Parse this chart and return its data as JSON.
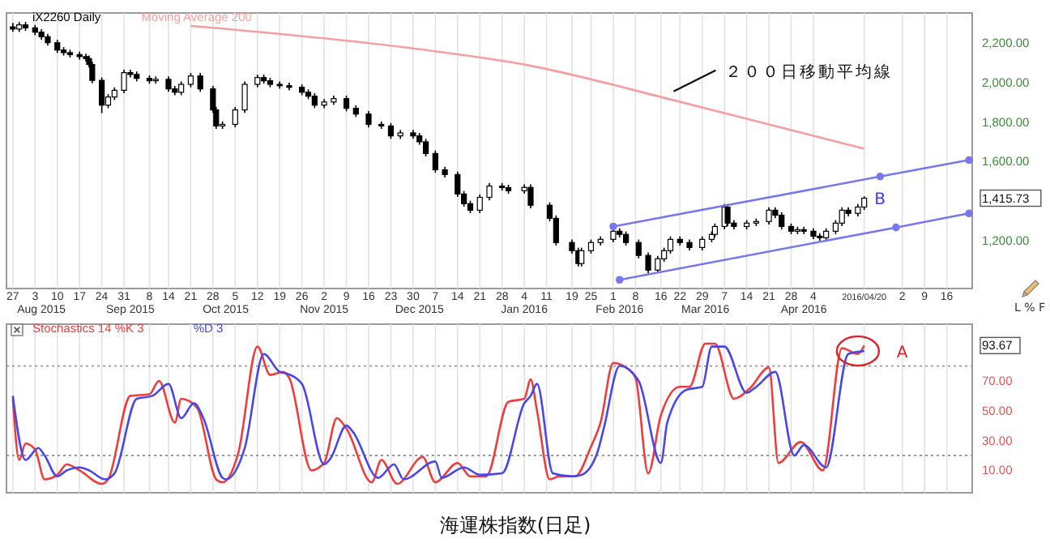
{
  "chart_data": [
    {
      "type": "candlestick",
      "legend": "top left",
      "grid": "x",
      "xlim": [
        "2015-07-25",
        "2016-05-24"
      ],
      "ylim": [
        960,
        2350
      ],
      "xticks": [
        {
          "value": "2015-07-27",
          "label": "27"
        },
        {
          "value": "2015-08-03",
          "label": "3"
        },
        {
          "value": "2015-08-10",
          "label": "10"
        },
        {
          "value": "2015-08-17",
          "label": "17"
        },
        {
          "value": "2015-08-24",
          "label": "24"
        },
        {
          "value": "2015-08-31",
          "label": "31"
        },
        {
          "value": "2015-09-08",
          "label": "8"
        },
        {
          "value": "2015-09-14",
          "label": "14"
        },
        {
          "value": "2015-09-21",
          "label": "21"
        },
        {
          "value": "2015-09-28",
          "label": "28"
        },
        {
          "value": "2015-10-05",
          "label": "5"
        },
        {
          "value": "2015-10-12",
          "label": "12"
        },
        {
          "value": "2015-10-19",
          "label": "19"
        },
        {
          "value": "2015-10-26",
          "label": "26"
        },
        {
          "value": "2015-11-02",
          "label": "2"
        },
        {
          "value": "2015-11-09",
          "label": "9"
        },
        {
          "value": "2015-11-16",
          "label": "16"
        },
        {
          "value": "2015-11-23",
          "label": "23"
        },
        {
          "value": "2015-11-30",
          "label": "30"
        },
        {
          "value": "2015-12-07",
          "label": "7"
        },
        {
          "value": "2015-12-14",
          "label": "14"
        },
        {
          "value": "2015-12-21",
          "label": "21"
        },
        {
          "value": "2015-12-28",
          "label": "28"
        },
        {
          "value": "2016-01-04",
          "label": "4"
        },
        {
          "value": "2016-01-11",
          "label": "11"
        },
        {
          "value": "2016-01-19",
          "label": "19"
        },
        {
          "value": "2016-01-25",
          "label": "25"
        },
        {
          "value": "2016-02-01",
          "label": "1"
        },
        {
          "value": "2016-02-08",
          "label": "8"
        },
        {
          "value": "2016-02-16",
          "label": "16"
        },
        {
          "value": "2016-02-22",
          "label": "22"
        },
        {
          "value": "2016-02-29",
          "label": "29"
        },
        {
          "value": "2016-03-07",
          "label": "7"
        },
        {
          "value": "2016-03-14",
          "label": "14"
        },
        {
          "value": "2016-03-21",
          "label": "21"
        },
        {
          "value": "2016-03-28",
          "label": "28"
        },
        {
          "value": "2016-04-04",
          "label": "4"
        },
        {
          "value": "2016-04-20",
          "label": "2016/04/20"
        },
        {
          "value": "2016-05-02",
          "label": "2"
        },
        {
          "value": "2016-05-09",
          "label": "9"
        },
        {
          "value": "2016-05-16",
          "label": "16"
        }
      ],
      "x2lim": [
        "2015-07-25",
        "2016-05-24"
      ],
      "x2ticks": [
        {
          "value": "2015-08-05",
          "label": "Aug 2015"
        },
        {
          "value": "2015-09-02",
          "label": "Sep 2015"
        },
        {
          "value": "2015-10-02",
          "label": "Oct 2015"
        },
        {
          "value": "2015-11-02",
          "label": "Nov 2015"
        },
        {
          "value": "2015-12-02",
          "label": "Dec 2015"
        },
        {
          "value": "2016-01-04",
          "label": "Jan 2016"
        },
        {
          "value": "2016-02-03",
          "label": "Feb 2016"
        },
        {
          "value": "2016-03-01",
          "label": "Mar 2016"
        },
        {
          "value": "2016-04-01",
          "label": "Apr 2016"
        }
      ],
      "yticks": [
        {
          "value": 1200,
          "label": "1,200.00"
        },
        {
          "value": 1415.73,
          "label": "1,415.73"
        },
        {
          "value": 1600,
          "label": "1,600.00"
        },
        {
          "value": 1800,
          "label": "1,800.00"
        },
        {
          "value": 2000,
          "label": "2,000.00"
        },
        {
          "value": 2200,
          "label": "2,200.00"
        }
      ],
      "series": [
        {
          "name": "iX2260 Daily",
          "color": "#000000",
          "x": [
            "2015-07-27",
            "2015-07-29",
            "2015-07-31",
            "2015-08-03",
            "2015-08-05",
            "2015-08-07",
            "2015-08-10",
            "2015-08-12",
            "2015-08-14",
            "2015-08-17",
            "2015-08-19",
            "2015-08-20",
            "2015-08-21",
            "2015-08-24",
            "2015-08-26",
            "2015-08-28",
            "2015-08-31",
            "2015-09-02",
            "2015-09-04",
            "2015-09-08",
            "2015-09-10",
            "2015-09-14",
            "2015-09-16",
            "2015-09-18",
            "2015-09-21",
            "2015-09-24",
            "2015-09-28",
            "2015-09-29",
            "2015-10-01",
            "2015-10-05",
            "2015-10-08",
            "2015-10-12",
            "2015-10-14",
            "2015-10-16",
            "2015-10-19",
            "2015-10-22",
            "2015-10-26",
            "2015-10-28",
            "2015-10-30",
            "2015-11-02",
            "2015-11-05",
            "2015-11-09",
            "2015-11-12",
            "2015-11-16",
            "2015-11-20",
            "2015-11-23",
            "2015-11-26",
            "2015-11-30",
            "2015-12-02",
            "2015-12-04",
            "2015-12-07",
            "2015-12-10",
            "2015-12-14",
            "2015-12-16",
            "2015-12-18",
            "2015-12-21",
            "2015-12-24",
            "2015-12-28",
            "2015-12-30",
            "2016-01-04",
            "2016-01-06",
            "2016-01-12",
            "2016-01-14",
            "2016-01-19",
            "2016-01-21",
            "2016-01-22",
            "2016-01-25",
            "2016-01-28",
            "2016-02-01",
            "2016-02-03",
            "2016-02-05",
            "2016-02-09",
            "2016-02-12",
            "2016-02-15",
            "2016-02-17",
            "2016-02-19",
            "2016-02-22",
            "2016-02-25",
            "2016-02-29",
            "2016-03-03",
            "2016-03-04",
            "2016-03-07",
            "2016-03-08",
            "2016-03-10",
            "2016-03-14",
            "2016-03-17",
            "2016-03-21",
            "2016-03-23",
            "2016-03-25",
            "2016-03-28",
            "2016-03-30",
            "2016-04-01",
            "2016-04-04",
            "2016-04-06",
            "2016-04-08",
            "2016-04-11",
            "2016-04-13",
            "2016-04-15",
            "2016-04-18",
            "2016-04-20"
          ],
          "ohlc": [
            [
              2280,
              2300,
              2255,
              2269
            ],
            [
              2269,
              2305,
              2254,
              2290
            ],
            [
              2290,
              2305,
              2260,
              2275
            ],
            [
              2275,
              2290,
              2238,
              2253
            ],
            [
              2253,
              2268,
              2215,
              2230
            ],
            [
              2230,
              2245,
              2185,
              2200
            ],
            [
              2200,
              2215,
              2148,
              2163
            ],
            [
              2163,
              2178,
              2135,
              2150
            ],
            [
              2150,
              2165,
              2125,
              2140
            ],
            [
              2140,
              2155,
              2115,
              2130
            ],
            [
              2130,
              2145,
              2105,
              2120
            ],
            [
              2120,
              2135,
              2075,
              2090
            ],
            [
              2090,
              2105,
              1995,
              2010
            ],
            [
              2010,
              2025,
              1845,
              1885
            ],
            [
              1885,
              1941,
              1870,
              1926
            ],
            [
              1926,
              1975,
              1911,
              1960
            ],
            [
              1960,
              2064,
              1945,
              2049
            ],
            [
              2049,
              2064,
              2025,
              2040
            ],
            [
              2040,
              2055,
              2005,
              2020
            ],
            [
              2020,
              2035,
              1993,
              2008
            ],
            [
              2008,
              2030,
              1993,
              2015
            ],
            [
              2015,
              2030,
              1952,
              1967
            ],
            [
              1967,
              1982,
              1935,
              1950
            ],
            [
              1950,
              2005,
              1935,
              1990
            ],
            [
              1990,
              2047,
              1975,
              2032
            ],
            [
              2032,
              2047,
              1952,
              1967
            ],
            [
              1967,
              1982,
              1846,
              1861
            ],
            [
              1861,
              1876,
              1765,
              1780
            ],
            [
              1780,
              1803,
              1765,
              1788
            ],
            [
              1788,
              1876,
              1773,
              1861
            ],
            [
              1861,
              2005,
              1846,
              1990
            ],
            [
              1990,
              2039,
              1975,
              2024
            ],
            [
              2024,
              2039,
              1993,
              2008
            ],
            [
              2008,
              2023,
              1975,
              1990
            ],
            [
              1990,
              2005,
              1968,
              1983
            ],
            [
              1983,
              1998,
              1960,
              1975
            ],
            [
              1975,
              1990,
              1935,
              1950
            ],
            [
              1950,
              1965,
              1915,
              1930
            ],
            [
              1930,
              1945,
              1870,
              1885
            ],
            [
              1885,
              1916,
              1870,
              1901
            ],
            [
              1901,
              1933,
              1886,
              1918
            ],
            [
              1918,
              1933,
              1854,
              1869
            ],
            [
              1869,
              1884,
              1825,
              1840
            ],
            [
              1840,
              1855,
              1773,
              1788
            ],
            [
              1788,
              1803,
              1765,
              1780
            ],
            [
              1780,
              1795,
              1715,
              1730
            ],
            [
              1730,
              1760,
              1715,
              1745
            ],
            [
              1745,
              1760,
              1715,
              1730
            ],
            [
              1730,
              1745,
              1685,
              1700
            ],
            [
              1700,
              1715,
              1626,
              1641
            ],
            [
              1641,
              1656,
              1544,
              1559
            ],
            [
              1559,
              1574,
              1520,
              1535
            ],
            [
              1535,
              1550,
              1422,
              1437
            ],
            [
              1437,
              1452,
              1373,
              1388
            ],
            [
              1388,
              1403,
              1340,
              1355
            ],
            [
              1355,
              1435,
              1340,
              1420
            ],
            [
              1420,
              1492,
              1405,
              1477
            ],
            [
              1477,
              1492,
              1454,
              1469
            ],
            [
              1469,
              1484,
              1438,
              1453
            ],
            [
              1453,
              1485,
              1438,
              1470
            ],
            [
              1470,
              1485,
              1365,
              1380
            ],
            [
              1380,
              1395,
              1299,
              1314
            ],
            [
              1314,
              1329,
              1177,
              1192
            ],
            [
              1192,
              1207,
              1136,
              1151
            ],
            [
              1151,
              1166,
              1071,
              1086
            ],
            [
              1086,
              1166,
              1071,
              1151
            ],
            [
              1151,
              1207,
              1136,
              1192
            ],
            [
              1192,
              1223,
              1177,
              1208
            ],
            [
              1208,
              1264,
              1193,
              1249
            ],
            [
              1249,
              1264,
              1218,
              1233
            ],
            [
              1233,
              1248,
              1177,
              1192
            ],
            [
              1192,
              1207,
              1112,
              1127
            ],
            [
              1127,
              1142,
              1038,
              1053
            ],
            [
              1053,
              1125,
              1038,
              1110
            ],
            [
              1110,
              1166,
              1095,
              1151
            ],
            [
              1151,
              1223,
              1136,
              1208
            ],
            [
              1208,
              1223,
              1177,
              1192
            ],
            [
              1192,
              1207,
              1152,
              1167
            ],
            [
              1167,
              1223,
              1152,
              1208
            ],
            [
              1208,
              1248,
              1193,
              1233
            ],
            [
              1233,
              1288,
              1218,
              1273
            ],
            [
              1273,
              1386,
              1258,
              1371
            ],
            [
              1371,
              1386,
              1275,
              1290
            ],
            [
              1290,
              1305,
              1258,
              1273
            ],
            [
              1273,
              1305,
              1258,
              1290
            ],
            [
              1290,
              1313,
              1275,
              1298
            ],
            [
              1298,
              1370,
              1283,
              1355
            ],
            [
              1355,
              1370,
              1315,
              1330
            ],
            [
              1330,
              1345,
              1258,
              1273
            ],
            [
              1273,
              1288,
              1234,
              1249
            ],
            [
              1249,
              1272,
              1234,
              1257
            ],
            [
              1257,
              1272,
              1234,
              1249
            ],
            [
              1249,
              1264,
              1209,
              1224
            ],
            [
              1224,
              1239,
              1201,
              1216
            ],
            [
              1216,
              1264,
              1201,
              1249
            ],
            [
              1249,
              1305,
              1234,
              1290
            ],
            [
              1290,
              1370,
              1275,
              1355
            ],
            [
              1355,
              1370,
              1324,
              1339
            ],
            [
              1339,
              1386,
              1324,
              1371
            ],
            [
              1371,
              1425,
              1356,
              1415.73
            ]
          ]
        },
        {
          "name": "Moving Average 200",
          "type": "line",
          "color": "#f4a0a0",
          "x": [
            "2015-09-21",
            "2015-11-30",
            "2016-01-04",
            "2016-02-20",
            "2016-03-21",
            "2016-04-20"
          ],
          "values": [
            2285,
            2171,
            2090,
            1910,
            1788,
            1665
          ]
        },
        {
          "type": "line",
          "color": "#7878ee",
          "marker": "circle",
          "x": [
            "2016-02-01",
            "2016-04-25",
            "2016-05-23"
          ],
          "values": [
            1273,
            1525,
            1608
          ]
        },
        {
          "type": "line",
          "color": "#7878ee",
          "marker": "circle",
          "x": [
            "2016-02-03",
            "2016-04-30",
            "2016-05-23"
          ],
          "values": [
            1004,
            1268,
            1339
          ]
        }
      ],
      "annotations": [
        {
          "text": "２００日移動平均線",
          "x": "2016-02-20",
          "y": 1930
        },
        "B",
        "L % F"
      ]
    },
    {
      "type": "line",
      "legend": "top left",
      "grid": "x",
      "tick_labels": "y",
      "xlim": [
        "2015-07-25",
        "2016-05-24"
      ],
      "ylim": [
        -5,
        108
      ],
      "xticks": [
        {
          "value": "2015-07-27",
          "label": null
        },
        {
          "value": "2015-08-03",
          "label": null
        },
        {
          "value": "2015-08-10",
          "label": null
        },
        {
          "value": "2015-08-17",
          "label": null
        },
        {
          "value": "2015-08-24",
          "label": null
        },
        {
          "value": "2015-08-31",
          "label": null
        },
        {
          "value": "2015-09-08",
          "label": null
        },
        {
          "value": "2015-09-14",
          "label": null
        },
        {
          "value": "2015-09-21",
          "label": null
        },
        {
          "value": "2015-09-28",
          "label": null
        },
        {
          "value": "2015-10-05",
          "label": null
        },
        {
          "value": "2015-10-12",
          "label": null
        },
        {
          "value": "2015-10-19",
          "label": null
        },
        {
          "value": "2015-10-26",
          "label": null
        },
        {
          "value": "2015-11-02",
          "label": null
        },
        {
          "value": "2015-11-09",
          "label": null
        },
        {
          "value": "2015-11-16",
          "label": null
        },
        {
          "value": "2015-11-23",
          "label": null
        },
        {
          "value": "2015-11-30",
          "label": null
        },
        {
          "value": "2015-12-07",
          "label": null
        },
        {
          "value": "2015-12-14",
          "label": null
        },
        {
          "value": "2015-12-21",
          "label": null
        },
        {
          "value": "2015-12-28",
          "label": null
        },
        {
          "value": "2016-01-04",
          "label": null
        },
        {
          "value": "2016-01-11",
          "label": null
        },
        {
          "value": "2016-01-19",
          "label": null
        },
        {
          "value": "2016-01-25",
          "label": null
        },
        {
          "value": "2016-02-01",
          "label": null
        },
        {
          "value": "2016-02-08",
          "label": null
        },
        {
          "value": "2016-02-16",
          "label": null
        },
        {
          "value": "2016-02-22",
          "label": null
        },
        {
          "value": "2016-02-29",
          "label": null
        },
        {
          "value": "2016-03-07",
          "label": null
        },
        {
          "value": "2016-03-14",
          "label": null
        },
        {
          "value": "2016-03-21",
          "label": null
        },
        {
          "value": "2016-03-28",
          "label": null
        },
        {
          "value": "2016-04-04",
          "label": null
        },
        {
          "value": "2016-04-20",
          "label": null
        },
        {
          "value": "2016-05-02",
          "label": null
        },
        {
          "value": "2016-05-09",
          "label": null
        },
        {
          "value": "2016-05-16",
          "label": null
        }
      ],
      "yticks": [
        {
          "value": 10,
          "label": "10.00"
        },
        {
          "value": 30,
          "label": "30.00"
        },
        {
          "value": 50,
          "label": "50.00"
        },
        {
          "value": 70,
          "label": "70.00"
        },
        {
          "value": 93.67,
          "label": "93.67"
        }
      ],
      "ref_lines": [
        {
          "axis": "y",
          "value": 80,
          "color": "#999999",
          "line_style": "dotted"
        },
        {
          "axis": "y",
          "value": 20,
          "color": "#999999",
          "line_style": "dotted"
        }
      ],
      "series": [
        {
          "name": "Stochastics 14 %K 3",
          "color": "#f03c3c",
          "x": [
            "2015-07-27",
            "2015-07-29",
            "2015-07-31",
            "2015-08-03",
            "2015-08-06",
            "2015-08-10",
            "2015-08-13",
            "2015-08-17",
            "2015-08-24",
            "2015-08-26",
            "2015-09-02",
            "2015-09-08",
            "2015-09-11",
            "2015-09-16",
            "2015-09-18",
            "2015-09-23",
            "2015-09-29",
            "2015-10-01",
            "2015-10-06",
            "2015-10-12",
            "2015-10-16",
            "2015-10-20",
            "2015-10-22",
            "2015-10-29",
            "2015-11-02",
            "2015-11-06",
            "2015-11-09",
            "2015-11-17",
            "2015-11-20",
            "2015-11-25",
            "2015-12-03",
            "2015-12-07",
            "2015-12-14",
            "2015-12-18",
            "2015-12-23",
            "2015-12-30",
            "2016-01-04",
            "2016-01-06",
            "2016-01-08",
            "2016-01-12",
            "2016-01-15",
            "2016-01-20",
            "2016-01-25",
            "2016-01-28",
            "2016-02-01",
            "2016-02-05",
            "2016-02-08",
            "2016-02-12",
            "2016-02-16",
            "2016-02-22",
            "2016-02-25",
            "2016-03-01",
            "2016-03-04",
            "2016-03-10",
            "2016-03-15",
            "2016-03-21",
            "2016-03-24",
            "2016-03-31",
            "2016-04-07",
            "2016-04-13",
            "2016-04-18",
            "2016-04-20"
          ],
          "values": [
            58,
            17,
            28,
            24,
            4,
            7,
            14,
            10,
            1,
            4,
            60,
            61,
            70,
            42,
            58,
            52,
            4,
            2,
            22,
            93,
            74,
            76,
            72,
            10,
            15,
            45,
            38,
            2,
            17,
            1,
            19,
            2,
            15,
            6,
            6,
            56,
            58,
            71,
            50,
            4,
            6,
            6,
            26,
            42,
            82,
            79,
            72,
            8,
            47,
            66,
            66,
            95,
            95,
            58,
            65,
            79,
            15,
            29,
            10,
            92,
            88,
            93.67
          ]
        },
        {
          "name": "%D 3",
          "color": "#4848e8",
          "x": [
            "2015-07-27",
            "2015-07-31",
            "2015-08-04",
            "2015-08-06",
            "2015-08-10",
            "2015-08-13",
            "2015-08-17",
            "2015-08-20",
            "2015-08-25",
            "2015-08-28",
            "2015-09-04",
            "2015-09-09",
            "2015-09-14",
            "2015-09-18",
            "2015-09-22",
            "2015-09-25",
            "2015-10-01",
            "2015-10-02",
            "2015-10-08",
            "2015-10-14",
            "2015-10-19",
            "2015-10-21",
            "2015-10-26",
            "2015-11-02",
            "2015-11-04",
            "2015-11-09",
            "2015-11-11",
            "2015-11-19",
            "2015-11-24",
            "2015-11-27",
            "2015-12-07",
            "2015-12-09",
            "2015-12-16",
            "2015-12-21",
            "2015-12-28",
            "2016-01-04",
            "2016-01-06",
            "2016-01-08",
            "2016-01-13",
            "2016-01-19",
            "2016-01-22",
            "2016-01-27",
            "2016-01-29",
            "2016-02-03",
            "2016-02-09",
            "2016-02-16",
            "2016-02-18",
            "2016-02-24",
            "2016-02-29",
            "2016-03-03",
            "2016-03-07",
            "2016-03-14",
            "2016-03-17",
            "2016-03-23",
            "2016-03-29",
            "2016-04-01",
            "2016-04-08",
            "2016-04-15",
            "2016-04-20"
          ],
          "values": [
            60,
            17,
            25,
            20,
            6,
            10,
            12,
            10,
            4,
            8,
            58,
            60,
            68,
            45,
            55,
            45,
            5,
            4,
            25,
            88,
            76,
            75,
            68,
            14,
            18,
            40,
            36,
            5,
            14,
            4,
            16,
            5,
            12,
            7,
            8,
            55,
            60,
            68,
            8,
            6,
            7,
            22,
            38,
            80,
            70,
            15,
            42,
            64,
            66,
            93,
            93,
            62,
            66,
            76,
            20,
            27,
            12,
            88,
            90
          ]
        }
      ],
      "annotations": [
        {
          "text": "A",
          "x": "2016-04-18",
          "y": 90
        },
        "海運株指数(日足)"
      ]
    }
  ]
}
